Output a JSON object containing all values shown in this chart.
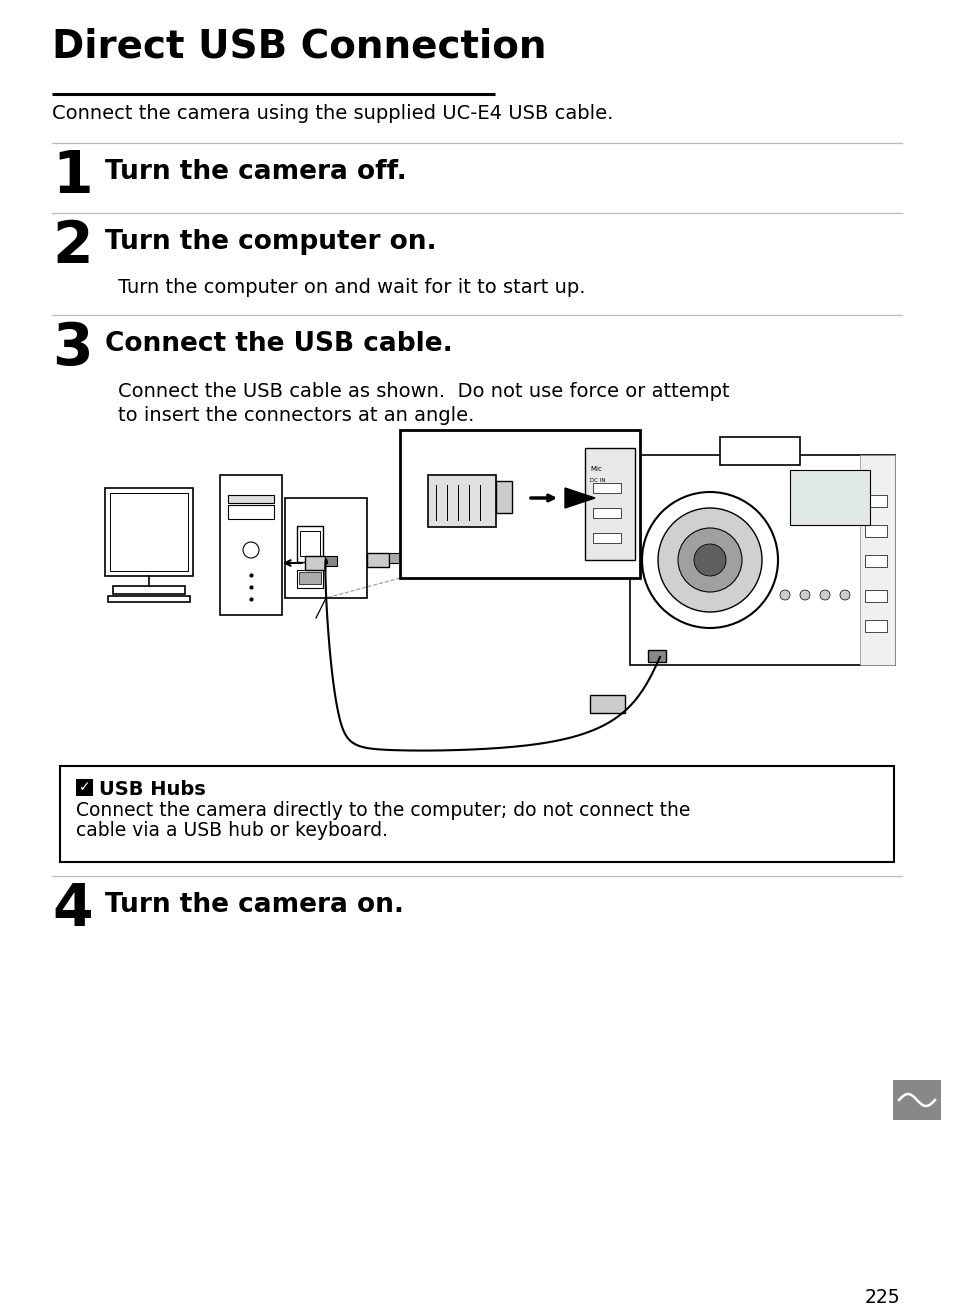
{
  "title": "Direct USB Connection",
  "subtitle": "Connect the camera using the supplied UC-E4 USB cable.",
  "step1_num": "1",
  "step1_text": "Turn the camera off.",
  "step2_num": "2",
  "step2_text": "Turn the computer on.",
  "step2_body": "Turn the computer on and wait for it to start up.",
  "step3_num": "3",
  "step3_text": "Connect the USB cable.",
  "step3_body1": "Connect the USB cable as shown.  Do not use force or attempt",
  "step3_body2": "to insert the connectors at an angle.",
  "note_title": "USB Hubs",
  "note_body1": "Connect the camera directly to the computer; do not connect the",
  "note_body2": "cable via a USB hub or keyboard.",
  "step4_num": "4",
  "step4_text": "Turn the camera on.",
  "page_num": "225",
  "bg_color": "#ffffff",
  "text_color": "#000000",
  "sep_color": "#bbbbbb",
  "note_border_color": "#000000",
  "title_fontsize": 28,
  "subtitle_fontsize": 14,
  "step_num_fontsize": 42,
  "step_text_fontsize": 19,
  "body_fontsize": 14,
  "note_fontsize": 13.5
}
